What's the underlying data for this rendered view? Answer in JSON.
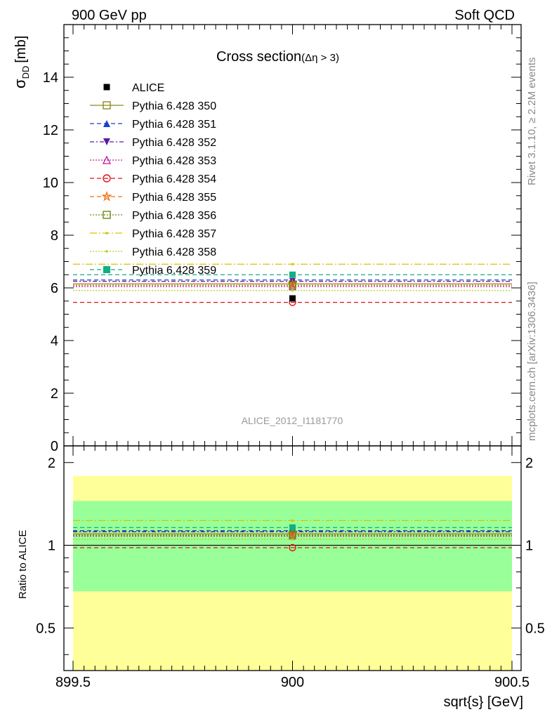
{
  "header": {
    "left": "900 GeV pp",
    "right": "Soft QCD"
  },
  "side_labels": {
    "top": "Rivet 3.1.10, ≥ 2.2M events",
    "bottom": "mcplots.cern.ch [arXiv:1306.3436]"
  },
  "colors": {
    "band_outer": "#ffff99",
    "band_inner": "#99ff99",
    "data": "#000000"
  },
  "chart_data": {
    "type": "line",
    "title": "Cross section",
    "title_sub": "(Δη > 3)",
    "analysis_label": "ALICE_2012_I1181770",
    "xlabel": "sqrt{s} [GeV]",
    "ylabel_main": "σ",
    "ylabel_sub": "DD",
    "ylabel_unit": "[mb]",
    "ylabel_ratio": "Ratio to ALICE",
    "xlim": [
      899.5,
      900.5
    ],
    "ylim_main": [
      0,
      16
    ],
    "ylim_ratio": [
      0.35,
      2.3
    ],
    "ratio_scale": "log",
    "x_ticks": [
      "899.5",
      "900",
      "900.5"
    ],
    "y_ticks_main": [
      "0",
      "2",
      "4",
      "6",
      "8",
      "10",
      "12",
      "14"
    ],
    "y_ticks_ratio": [
      "0.5",
      "1",
      "2"
    ],
    "data": {
      "name": "ALICE",
      "x": 900,
      "y": 5.6,
      "ratio_band_inner": [
        0.68,
        1.45
      ],
      "ratio_band_outer": [
        0.35,
        1.79
      ]
    },
    "series": [
      {
        "name": "Pythia 6.428 350",
        "value": 6.15,
        "ratio": 1.1,
        "color": "#8c8c1e",
        "dash": "",
        "marker": "square-open"
      },
      {
        "name": "Pythia 6.428 351",
        "value": 6.3,
        "ratio": 1.13,
        "color": "#1a3fd1",
        "dash": "6,4",
        "marker": "triangle-up"
      },
      {
        "name": "Pythia 6.428 352",
        "value": 6.25,
        "ratio": 1.12,
        "color": "#5a1aa6",
        "dash": "6,3,2,3",
        "marker": "triangle-down"
      },
      {
        "name": "Pythia 6.428 353",
        "value": 6.05,
        "ratio": 1.08,
        "color": "#c0189a",
        "dash": "2,2",
        "marker": "triangle-open"
      },
      {
        "name": "Pythia 6.428 354",
        "value": 5.45,
        "ratio": 0.98,
        "color": "#e0101a",
        "dash": "6,4",
        "marker": "circle-open"
      },
      {
        "name": "Pythia 6.428 355",
        "value": 6.15,
        "ratio": 1.1,
        "color": "#f07010",
        "dash": "6,4",
        "marker": "star-open"
      },
      {
        "name": "Pythia 6.428 356",
        "value": 6.1,
        "ratio": 1.09,
        "color": "#6a8a10",
        "dash": "2,2",
        "marker": "square-open"
      },
      {
        "name": "Pythia 6.428 357",
        "value": 6.9,
        "ratio": 1.23,
        "color": "#d8c400",
        "dash": "10,3,2,3",
        "marker": "dot"
      },
      {
        "name": "Pythia 6.428 358",
        "value": 5.9,
        "ratio": 1.05,
        "color": "#b8d020",
        "dash": "2,2",
        "marker": "dot"
      },
      {
        "name": "Pythia 6.428 359",
        "value": 6.5,
        "ratio": 1.16,
        "color": "#10b080",
        "dash": "6,4",
        "marker": "square-filled"
      }
    ]
  }
}
